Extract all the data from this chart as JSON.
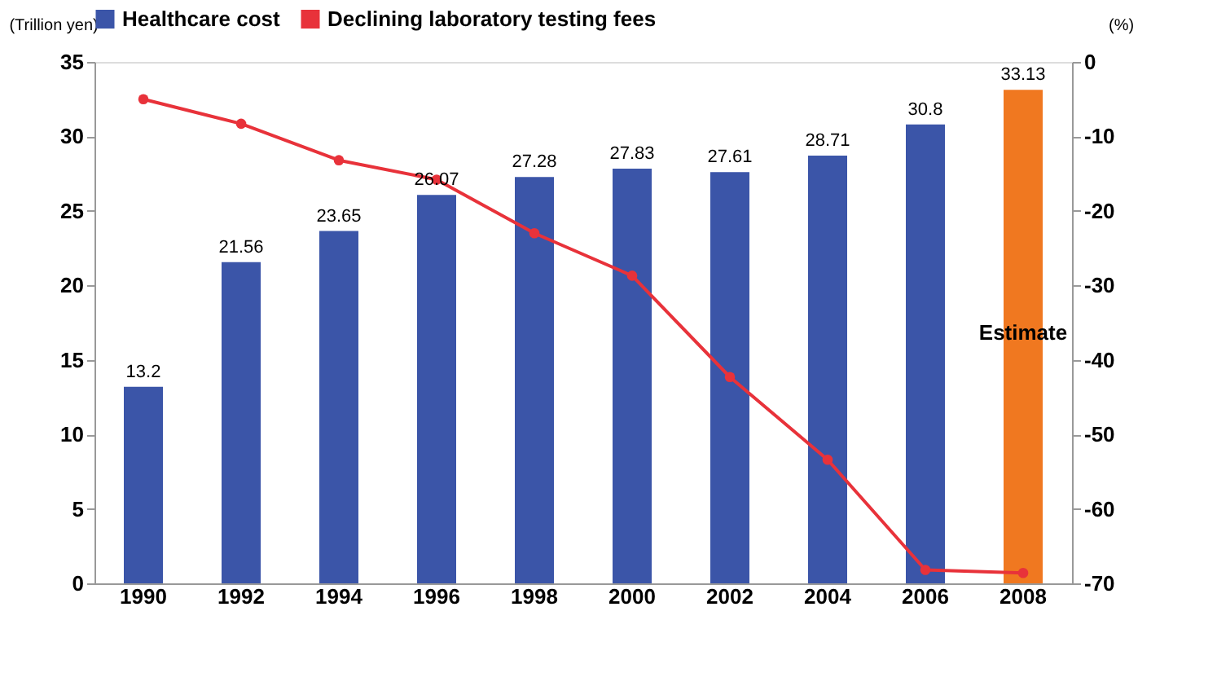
{
  "chart_data": {
    "type": "bar",
    "categories": [
      "1990",
      "1992",
      "1994",
      "1996",
      "1998",
      "2000",
      "2002",
      "2004",
      "2006",
      "2008"
    ],
    "ylabel": "(Trillion yen)",
    "y2label": "(%)",
    "series": [
      {
        "name": "Healthcare cost",
        "colors": [
          "#3b55a8",
          "#3b55a8",
          "#3b55a8",
          "#3b55a8",
          "#3b55a8",
          "#3b55a8",
          "#3b55a8",
          "#3b55a8",
          "#3b55a8",
          "#f07820"
        ],
        "values": [
          13.2,
          21.56,
          23.65,
          26.07,
          27.28,
          27.83,
          27.61,
          28.71,
          30.8,
          33.13
        ],
        "value_labels": [
          "13.2",
          "21.56",
          "23.65",
          "26.07",
          "27.28",
          "27.83",
          "27.61",
          "28.71",
          "30.8",
          "33.13"
        ]
      },
      {
        "name": "Declining laboratory testing fees",
        "type": "line",
        "axis": "y2",
        "color": "#e8323a",
        "values": [
          -5,
          -8.3,
          -13.2,
          -15.8,
          -23,
          -28.7,
          -42.3,
          -53.4,
          -68.2,
          -68.6
        ]
      }
    ],
    "ylim": [
      0,
      35
    ],
    "yticks": [
      0,
      5,
      10,
      15,
      20,
      25,
      30,
      35
    ],
    "y2lim": [
      -70,
      0
    ],
    "y2ticks": [
      -70,
      -60,
      -50,
      -40,
      -30,
      -20,
      -10,
      0
    ],
    "marker": "circle",
    "grid": false,
    "legend": "top",
    "annotations": [
      "Estimate"
    ]
  }
}
